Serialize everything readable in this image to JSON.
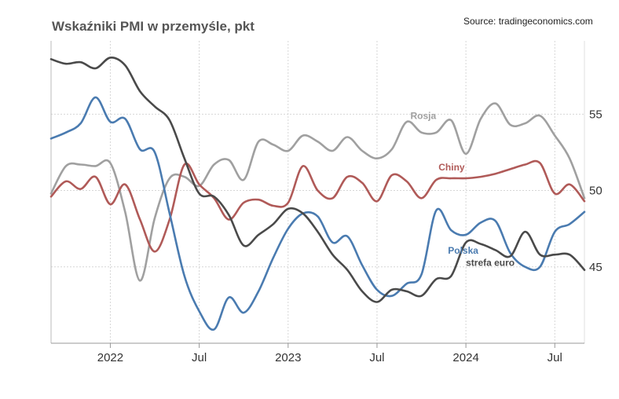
{
  "title": "Wskaźniki PMI w przemyśle, pkt",
  "source": "Source: tradingeconomics.com",
  "chart_data": {
    "type": "line",
    "title": "Wskaźniki PMI w przemyśle, pkt",
    "xlabel": "",
    "ylabel": "",
    "x_tick_labels": [
      "2022",
      "Jul",
      "2023",
      "Jul",
      "2024",
      "Jul"
    ],
    "x_tick_dates": [
      "2022-01",
      "2022-07",
      "2023-01",
      "2023-07",
      "2024-01",
      "2024-07"
    ],
    "x_range": [
      "2021-09",
      "2024-09"
    ],
    "y_ticks": [
      45,
      50,
      55
    ],
    "ylim": [
      40,
      59.8
    ],
    "grid": true,
    "y_axis_position": "right",
    "legend": "inline labels",
    "x": [
      "2021-09",
      "2021-10",
      "2021-11",
      "2021-12",
      "2022-01",
      "2022-02",
      "2022-03",
      "2022-04",
      "2022-05",
      "2022-06",
      "2022-07",
      "2022-08",
      "2022-09",
      "2022-10",
      "2022-11",
      "2022-12",
      "2023-01",
      "2023-02",
      "2023-03",
      "2023-04",
      "2023-05",
      "2023-06",
      "2023-07",
      "2023-08",
      "2023-09",
      "2023-10",
      "2023-11",
      "2023-12",
      "2024-01",
      "2024-02",
      "2024-03",
      "2024-04",
      "2024-05",
      "2024-06",
      "2024-07",
      "2024-08",
      "2024-09"
    ],
    "series": [
      {
        "name": "Rosja",
        "color": "#a0a0a0",
        "values": [
          49.8,
          51.6,
          51.7,
          51.6,
          51.8,
          48.6,
          44.1,
          48.2,
          50.8,
          50.9,
          50.3,
          51.7,
          52.0,
          50.7,
          53.2,
          53.0,
          52.6,
          53.6,
          53.2,
          52.6,
          53.5,
          52.6,
          52.1,
          52.7,
          54.5,
          53.8,
          53.8,
          54.6,
          52.4,
          54.7,
          55.7,
          54.3,
          54.4,
          54.9,
          53.6,
          52.1,
          49.5
        ]
      },
      {
        "name": "Chiny",
        "color": "#b05a58",
        "values": [
          49.6,
          50.6,
          50.1,
          50.9,
          49.1,
          50.4,
          48.1,
          46.0,
          48.1,
          51.7,
          50.4,
          49.5,
          48.1,
          49.2,
          49.4,
          49.0,
          49.2,
          51.6,
          50.0,
          49.5,
          50.9,
          50.5,
          49.3,
          51.0,
          50.6,
          49.5,
          50.7,
          50.8,
          50.8,
          50.9,
          51.1,
          51.4,
          51.7,
          51.8,
          49.8,
          50.4,
          49.3
        ]
      },
      {
        "name": "Polska",
        "color": "#4a7bb0",
        "values": [
          53.4,
          53.8,
          54.4,
          56.1,
          54.5,
          54.7,
          52.7,
          52.5,
          48.5,
          44.4,
          42.1,
          40.9,
          43.0,
          42.0,
          43.4,
          45.6,
          47.5,
          48.5,
          48.3,
          46.6,
          47.0,
          45.1,
          43.5,
          43.1,
          43.9,
          44.5,
          48.7,
          47.4,
          47.1,
          47.9,
          48.0,
          45.9,
          45.0,
          45.0,
          47.3,
          47.8,
          48.6
        ]
      },
      {
        "name": "strefa euro",
        "color": "#4a4a4a",
        "values": [
          58.6,
          58.3,
          58.4,
          58.0,
          58.7,
          58.2,
          56.5,
          55.5,
          54.6,
          52.1,
          49.8,
          49.6,
          48.4,
          46.4,
          47.1,
          47.8,
          48.8,
          48.5,
          47.3,
          45.8,
          44.8,
          43.4,
          42.7,
          43.5,
          43.4,
          43.1,
          44.2,
          44.4,
          46.6,
          46.5,
          46.1,
          45.7,
          47.3,
          45.8,
          45.8,
          45.8,
          44.8
        ]
      }
    ]
  }
}
